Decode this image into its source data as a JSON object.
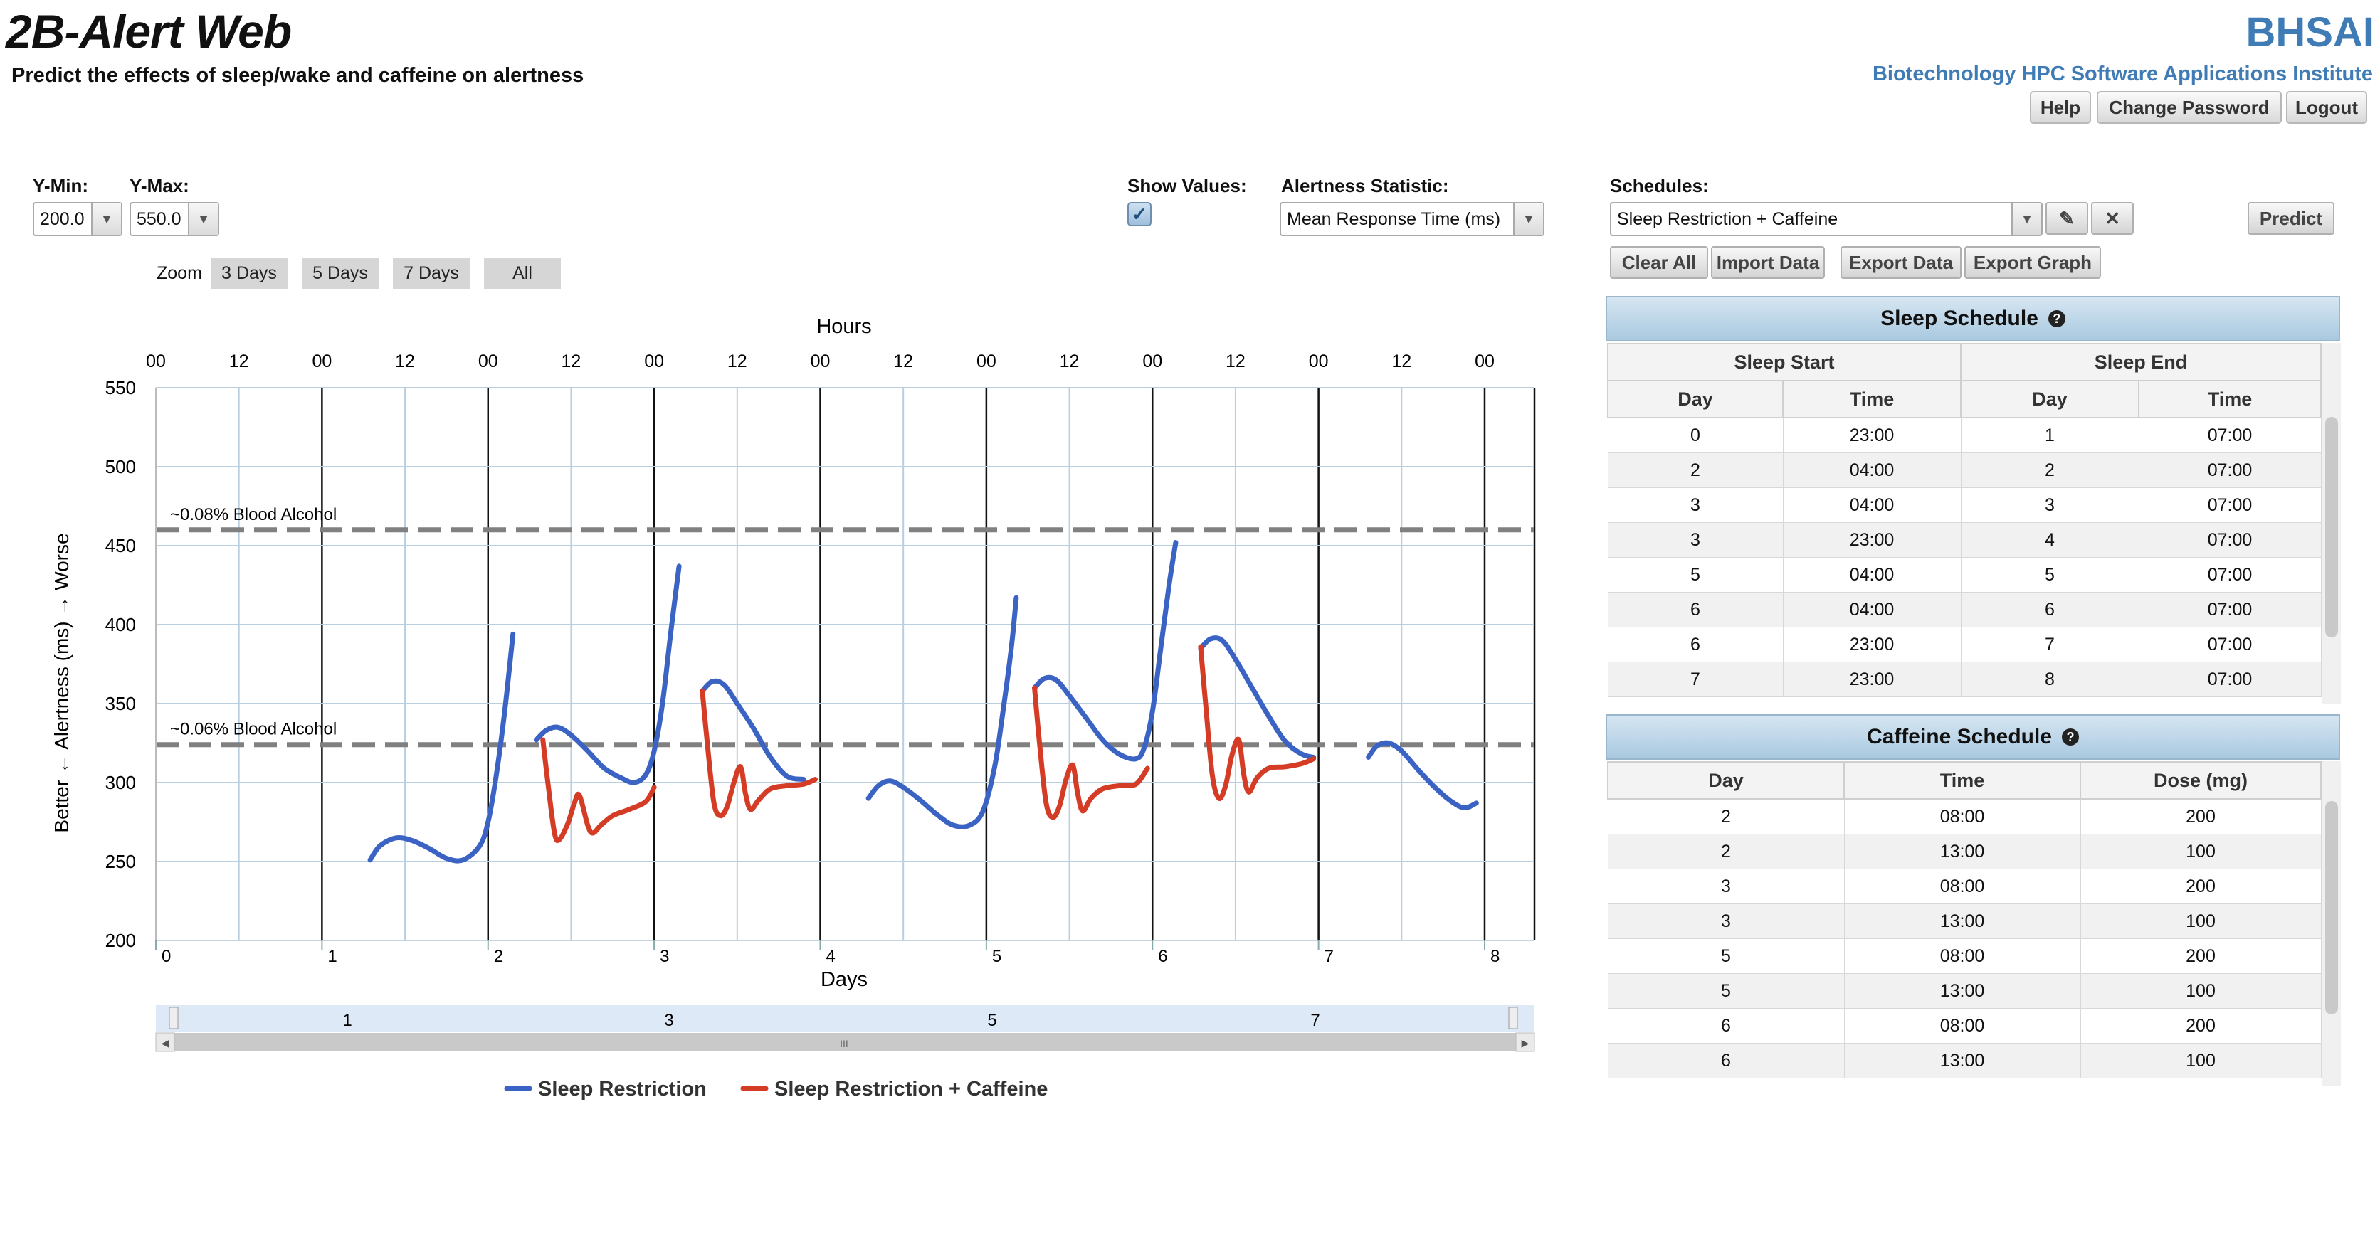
{
  "header": {
    "title": "2B-Alert Web",
    "subtitle": "Predict the effects of sleep/wake and caffeine on alertness",
    "org_abbr": "BHSAI",
    "org_name": "Biotechnology HPC Software Applications Institute",
    "buttons": {
      "help": "Help",
      "change_password": "Change Password",
      "logout": "Logout"
    }
  },
  "controls": {
    "ymin_label": "Y-Min:",
    "ymin_value": "200.0",
    "ymax_label": "Y-Max:",
    "ymax_value": "550.0",
    "show_values_label": "Show Values:",
    "show_values_checked": true,
    "stat_label": "Alertness Statistic:",
    "stat_value": "Mean Response Time (ms)",
    "zoom_label": "Zoom",
    "zoom_buttons": [
      "3 Days",
      "5 Days",
      "7 Days",
      "All"
    ]
  },
  "schedules": {
    "label": "Schedules:",
    "selected": "Sleep Restriction + Caffeine",
    "predict": "Predict",
    "actions": [
      "Clear All",
      "Import Data",
      "Export Data",
      "Export Graph"
    ]
  },
  "sleep_schedule": {
    "title": "Sleep Schedule",
    "group_headers": [
      "Sleep Start",
      "Sleep End"
    ],
    "columns": [
      "Day",
      "Time",
      "Day",
      "Time"
    ],
    "rows": [
      [
        "0",
        "23:00",
        "1",
        "07:00"
      ],
      [
        "2",
        "04:00",
        "2",
        "07:00"
      ],
      [
        "3",
        "04:00",
        "3",
        "07:00"
      ],
      [
        "3",
        "23:00",
        "4",
        "07:00"
      ],
      [
        "5",
        "04:00",
        "5",
        "07:00"
      ],
      [
        "6",
        "04:00",
        "6",
        "07:00"
      ],
      [
        "6",
        "23:00",
        "7",
        "07:00"
      ],
      [
        "7",
        "23:00",
        "8",
        "07:00"
      ]
    ]
  },
  "caffeine_schedule": {
    "title": "Caffeine Schedule",
    "columns": [
      "Day",
      "Time",
      "Dose (mg)"
    ],
    "rows": [
      [
        "2",
        "08:00",
        "200"
      ],
      [
        "2",
        "13:00",
        "100"
      ],
      [
        "3",
        "08:00",
        "200"
      ],
      [
        "3",
        "13:00",
        "100"
      ],
      [
        "5",
        "08:00",
        "200"
      ],
      [
        "5",
        "13:00",
        "100"
      ],
      [
        "6",
        "08:00",
        "200"
      ],
      [
        "6",
        "13:00",
        "100"
      ]
    ]
  },
  "chart_data": {
    "type": "line",
    "top_axis_title": "Hours",
    "top_ticks": [
      "00",
      "12",
      "00",
      "12",
      "00",
      "12",
      "00",
      "12",
      "00",
      "12",
      "00",
      "12",
      "00",
      "12",
      "00",
      "12",
      "00"
    ],
    "xlabel": "Days",
    "x_ticks": [
      "0",
      "1",
      "2",
      "3",
      "4",
      "5",
      "6",
      "7",
      "8"
    ],
    "ylabel": "Better ← Alertness (ms) → Worse",
    "y_ticks": [
      "200",
      "250",
      "300",
      "350",
      "400",
      "450",
      "500",
      "550"
    ],
    "xlim": [
      0,
      8.3
    ],
    "ylim": [
      200,
      550
    ],
    "grid": true,
    "legend_position": "bottom",
    "reference_lines": [
      {
        "label": "~0.08% Blood Alcohol",
        "y": 460
      },
      {
        "label": "~0.06% Blood Alcohol",
        "y": 324
      }
    ],
    "navigator_ticks": [
      "1",
      "3",
      "5",
      "7"
    ],
    "series": [
      {
        "name": "Sleep Restriction",
        "color": "#3b63c4",
        "segments": [
          [
            [
              1.29,
              251
            ],
            [
              1.35,
              260
            ],
            [
              1.45,
              265
            ],
            [
              1.55,
              263
            ],
            [
              1.65,
              258
            ],
            [
              1.75,
              252
            ],
            [
              1.85,
              251
            ],
            [
              1.95,
              260
            ],
            [
              2.0,
              275
            ],
            [
              2.05,
              305
            ],
            [
              2.1,
              345
            ],
            [
              2.15,
              394
            ]
          ],
          [
            [
              2.29,
              327
            ],
            [
              2.35,
              333
            ],
            [
              2.42,
              335
            ],
            [
              2.5,
              330
            ],
            [
              2.6,
              320
            ],
            [
              2.7,
              309
            ],
            [
              2.8,
              303
            ],
            [
              2.88,
              300
            ],
            [
              2.95,
              305
            ],
            [
              3.0,
              320
            ],
            [
              3.05,
              350
            ],
            [
              3.1,
              395
            ],
            [
              3.15,
              437
            ]
          ],
          [
            [
              3.29,
              358
            ],
            [
              3.35,
              364
            ],
            [
              3.42,
              362
            ],
            [
              3.5,
              350
            ],
            [
              3.6,
              334
            ],
            [
              3.7,
              316
            ],
            [
              3.8,
              304
            ],
            [
              3.9,
              302
            ]
          ],
          [
            [
              4.29,
              290
            ],
            [
              4.35,
              298
            ],
            [
              4.42,
              301
            ],
            [
              4.5,
              297
            ],
            [
              4.6,
              289
            ],
            [
              4.7,
              280
            ],
            [
              4.8,
              273
            ],
            [
              4.9,
              273
            ],
            [
              4.98,
              282
            ],
            [
              5.05,
              310
            ],
            [
              5.1,
              345
            ],
            [
              5.15,
              385
            ],
            [
              5.18,
              417
            ]
          ],
          [
            [
              5.29,
              360
            ],
            [
              5.35,
              366
            ],
            [
              5.42,
              365
            ],
            [
              5.5,
              355
            ],
            [
              5.6,
              341
            ],
            [
              5.7,
              327
            ],
            [
              5.8,
              318
            ],
            [
              5.9,
              315
            ],
            [
              5.95,
              322
            ],
            [
              6.0,
              345
            ],
            [
              6.05,
              385
            ],
            [
              6.1,
              425
            ],
            [
              6.14,
              452
            ]
          ],
          [
            [
              6.29,
              385
            ],
            [
              6.35,
              391
            ],
            [
              6.42,
              390
            ],
            [
              6.5,
              378
            ],
            [
              6.6,
              360
            ],
            [
              6.7,
              342
            ],
            [
              6.8,
              326
            ],
            [
              6.9,
              318
            ],
            [
              6.97,
              316
            ]
          ],
          [
            [
              7.3,
              316
            ],
            [
              7.35,
              323
            ],
            [
              7.42,
              325
            ],
            [
              7.5,
              320
            ],
            [
              7.6,
              308
            ],
            [
              7.7,
              297
            ],
            [
              7.8,
              288
            ],
            [
              7.88,
              284
            ],
            [
              7.95,
              287
            ]
          ]
        ]
      },
      {
        "name": "Sleep Restriction + Caffeine",
        "color": "#d43c26",
        "segments": [
          [
            [
              2.33,
              327
            ],
            [
              2.36,
              300
            ],
            [
              2.4,
              268
            ],
            [
              2.43,
              264
            ],
            [
              2.48,
              274
            ],
            [
              2.52,
              287
            ],
            [
              2.55,
              292
            ],
            [
              2.6,
              273
            ],
            [
              2.63,
              268
            ],
            [
              2.68,
              273
            ],
            [
              2.75,
              279
            ],
            [
              2.85,
              283
            ],
            [
              2.95,
              288
            ],
            [
              3.0,
              297
            ]
          ],
          [
            [
              3.29,
              358
            ],
            [
              3.32,
              325
            ],
            [
              3.36,
              287
            ],
            [
              3.4,
              279
            ],
            [
              3.44,
              285
            ],
            [
              3.48,
              300
            ],
            [
              3.52,
              310
            ],
            [
              3.55,
              293
            ],
            [
              3.58,
              283
            ],
            [
              3.63,
              289
            ],
            [
              3.7,
              296
            ],
            [
              3.8,
              298
            ],
            [
              3.9,
              299
            ],
            [
              3.97,
              302
            ]
          ],
          [
            [
              5.29,
              360
            ],
            [
              5.32,
              325
            ],
            [
              5.36,
              287
            ],
            [
              5.4,
              278
            ],
            [
              5.44,
              285
            ],
            [
              5.48,
              302
            ],
            [
              5.52,
              311
            ],
            [
              5.55,
              293
            ],
            [
              5.58,
              282
            ],
            [
              5.63,
              290
            ],
            [
              5.7,
              296
            ],
            [
              5.8,
              298
            ],
            [
              5.9,
              299
            ],
            [
              5.97,
              309
            ]
          ],
          [
            [
              6.29,
              386
            ],
            [
              6.32,
              350
            ],
            [
              6.36,
              305
            ],
            [
              6.4,
              290
            ],
            [
              6.44,
              298
            ],
            [
              6.48,
              318
            ],
            [
              6.52,
              327
            ],
            [
              6.55,
              305
            ],
            [
              6.58,
              294
            ],
            [
              6.63,
              303
            ],
            [
              6.7,
              309
            ],
            [
              6.8,
              310
            ],
            [
              6.9,
              312
            ],
            [
              6.97,
              315
            ]
          ]
        ]
      }
    ]
  }
}
